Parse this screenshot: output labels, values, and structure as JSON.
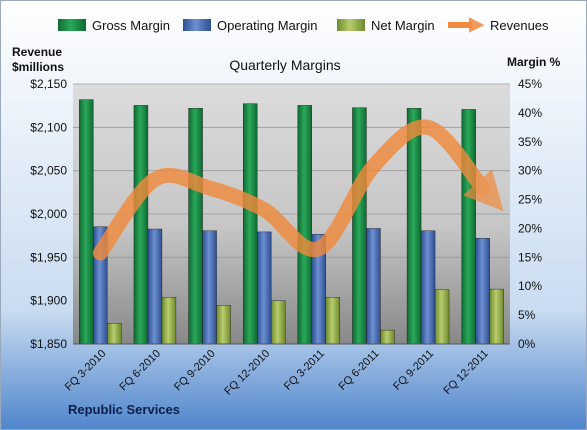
{
  "chart_data": {
    "type": "bar",
    "title": "Quarterly Margins",
    "left_axis_label_line1": "Revenue",
    "left_axis_label_line2": "$millions",
    "right_axis_label": "Margin %",
    "footer": "Republic Services",
    "categories": [
      "FQ 3-2010",
      "FQ 6-2010",
      "FQ 9-2010",
      "FQ 12-2010",
      "FQ 3-2011",
      "FQ 6-2011",
      "FQ 9-2011",
      "FQ 12-2011"
    ],
    "left_axis": {
      "min": 1850,
      "max": 2150,
      "step": 50,
      "ticks": [
        "$1,850",
        "$1,900",
        "$1,950",
        "$2,000",
        "$2,050",
        "$2,100",
        "$2,150"
      ]
    },
    "right_axis": {
      "min": 0,
      "max": 45,
      "step": 5,
      "ticks": [
        "0%",
        "5%",
        "10%",
        "15%",
        "20%",
        "25%",
        "30%",
        "35%",
        "40%",
        "45%"
      ]
    },
    "grid": true,
    "legend_position": "top",
    "series": [
      {
        "name": "Gross Margin",
        "kind": "bar",
        "axis": "right",
        "color": "#1e8a45",
        "values": [
          42.3,
          41.3,
          40.8,
          41.6,
          41.3,
          40.9,
          40.8,
          40.6
        ]
      },
      {
        "name": "Operating Margin",
        "kind": "bar",
        "axis": "right",
        "color": "#4a6fb8",
        "values": [
          20.3,
          19.9,
          19.6,
          19.4,
          19.0,
          20.0,
          19.6,
          18.3
        ]
      },
      {
        "name": "Net Margin",
        "kind": "bar",
        "axis": "right",
        "color": "#9bb350",
        "values": [
          3.6,
          8.1,
          6.7,
          7.5,
          8.1,
          2.4,
          9.4,
          9.5
        ]
      },
      {
        "name": "Revenues",
        "kind": "line",
        "axis": "left",
        "color": "#f08a3c",
        "values": [
          1955,
          2040,
          2030,
          2005,
          1960,
          2055,
          2100,
          2030
        ]
      }
    ]
  }
}
